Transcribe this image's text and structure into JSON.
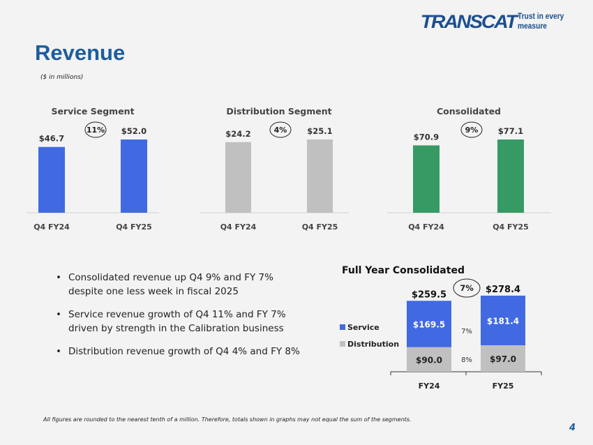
{
  "logo": {
    "mark": "TRANSCAT",
    "tagline": "Trust in every measure"
  },
  "title": "Revenue",
  "subtitle": "($ in millions)",
  "colors": {
    "service": "#4169e1",
    "distribution": "#c0c0c0",
    "consolidated": "#379a64",
    "title": "#1d5c9e"
  },
  "chart_data": [
    {
      "type": "bar",
      "title": "Service Segment",
      "categories": [
        "Q4 FY24",
        "Q4 FY25"
      ],
      "values": [
        46.7,
        52.0
      ],
      "data_labels": [
        "$46.7",
        "$52.0"
      ],
      "growth_badge": "11%",
      "color": "#4169e1"
    },
    {
      "type": "bar",
      "title": "Distribution Segment",
      "categories": [
        "Q4 FY24",
        "Q4 FY25"
      ],
      "values": [
        24.2,
        25.1
      ],
      "data_labels": [
        "$24.2",
        "$25.1"
      ],
      "growth_badge": "4%",
      "color": "#c0c0c0"
    },
    {
      "type": "bar",
      "title": "Consolidated",
      "categories": [
        "Q4 FY24",
        "Q4 FY25"
      ],
      "values": [
        70.9,
        77.1
      ],
      "data_labels": [
        "$70.9",
        "$77.1"
      ],
      "growth_badge": "9%",
      "color": "#379a64"
    },
    {
      "type": "stacked-bar",
      "title": "Full Year Consolidated",
      "categories": [
        "FY24",
        "FY25"
      ],
      "series": [
        {
          "name": "Service",
          "values": [
            169.5,
            181.4
          ],
          "data_labels": [
            "$169.5",
            "$181.4"
          ],
          "growth": "7%",
          "color": "#4169e1"
        },
        {
          "name": "Distribution",
          "values": [
            90.0,
            97.0
          ],
          "data_labels": [
            "$90.0",
            "$97.0"
          ],
          "growth": "8%",
          "color": "#c0c0c0"
        }
      ],
      "totals": [
        259.5,
        278.4
      ],
      "total_labels": [
        "$259.5",
        "$278.4"
      ],
      "growth_badge": "7%",
      "legend": "left"
    }
  ],
  "bullets": [
    "Consolidated revenue up Q4 9% and FY 7% despite one less week in fiscal 2025",
    "Service revenue growth of Q4 11% and FY 7% driven by strength in the Calibration business",
    "Distribution revenue growth of Q4 4% and FY 8%"
  ],
  "footnote": "All figures are rounded to the nearest tenth of a million. Therefore, totals shown in graphs may not equal the sum of the segments.",
  "page_number": "4"
}
